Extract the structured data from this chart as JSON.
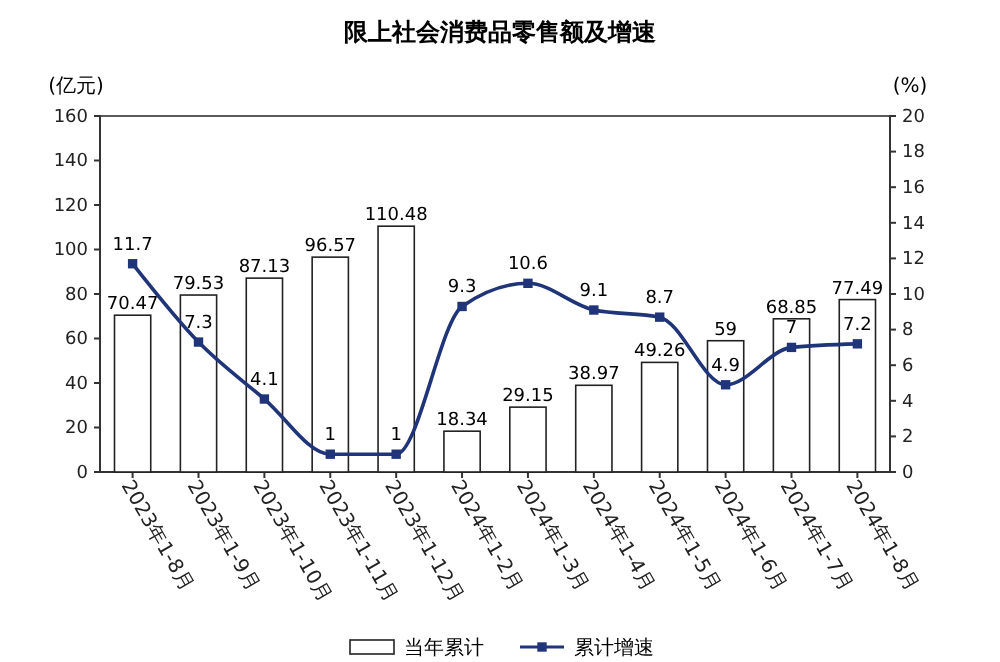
{
  "chart_data": {
    "type": "bar",
    "title": "限上社会消费品零售额及增速",
    "ylabel": "(亿元)",
    "y2label": "(%)",
    "categories": [
      "2023年1-8月",
      "2023年1-9月",
      "2023年1-10月",
      "2023年1-11月",
      "2023年1-12月",
      "2024年1-2月",
      "2024年1-3月",
      "2024年1-4月",
      "2024年1-5月",
      "2024年1-6月",
      "2024年1-7月",
      "2024年1-8月"
    ],
    "series": [
      {
        "name": "当年累计",
        "color": "#ffffff",
        "values": [
          70.47,
          79.53,
          87.13,
          96.57,
          110.48,
          18.34,
          29.15,
          38.97,
          49.26,
          59,
          68.85,
          77.49
        ]
      },
      {
        "name": "累计增速",
        "type": "line",
        "axis": "y2",
        "color": "#1f3479",
        "marker": "square",
        "values": [
          11.7,
          7.3,
          4.1,
          1,
          1,
          9.3,
          10.6,
          9.1,
          8.7,
          4.9,
          7,
          7.2
        ]
      }
    ],
    "ylim": [
      0,
      160
    ],
    "yticks": [
      0,
      20,
      40,
      60,
      80,
      100,
      120,
      140,
      160
    ],
    "y2lim": [
      0,
      20
    ],
    "y2ticks": [
      0,
      2,
      4,
      6,
      8,
      10,
      12,
      14,
      16,
      18,
      20
    ],
    "data_labels": true,
    "grid": false,
    "legend": "bottom"
  }
}
